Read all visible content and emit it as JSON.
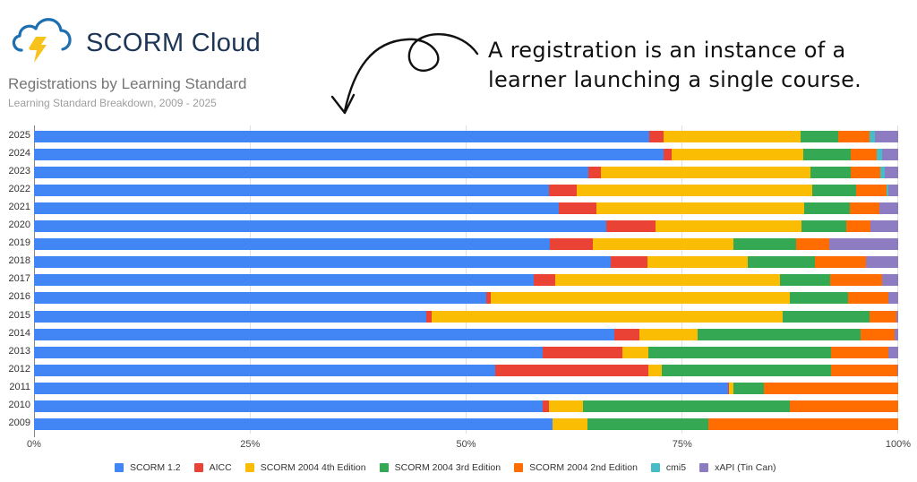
{
  "brand": {
    "name": "SCORM Cloud",
    "icon": "cloud-lightning-icon",
    "colors": {
      "cloud": "#1e6fb0",
      "bolt": "#f7c21b",
      "text": "#1d3557"
    }
  },
  "annotation": {
    "line1": "A registration is an instance of a",
    "line2": "learner launching a single course."
  },
  "chart_data": {
    "type": "bar",
    "orientation": "horizontal",
    "stacked": "percent",
    "title": "Registrations by Learning Standard",
    "subtitle": "Learning Standard Breakdown, 2009 - 2025",
    "xlabel": "",
    "ylabel": "",
    "xlim": [
      0,
      100
    ],
    "x_ticks": [
      "0%",
      "25%",
      "50%",
      "75%",
      "100%"
    ],
    "grid": true,
    "legend_position": "bottom",
    "categories": [
      "2025",
      "2024",
      "2023",
      "2022",
      "2021",
      "2020",
      "2019",
      "2018",
      "2017",
      "2016",
      "2015",
      "2014",
      "2013",
      "2012",
      "2011",
      "2010",
      "2009"
    ],
    "series": [
      {
        "name": "SCORM 1.2",
        "color": "#4285f4",
        "values": [
          71.2,
          72.9,
          64.1,
          59.6,
          60.7,
          66.2,
          59.7,
          66.7,
          57.8,
          52.3,
          45.4,
          67.2,
          58.9,
          53.4,
          80.3,
          58.9,
          60.0
        ]
      },
      {
        "name": "AICC",
        "color": "#ea4335",
        "values": [
          1.6,
          0.9,
          1.5,
          3.2,
          4.4,
          5.7,
          5.0,
          4.3,
          2.5,
          0.6,
          0.6,
          2.9,
          9.2,
          17.7,
          0.1,
          0.7,
          0.0
        ]
      },
      {
        "name": "SCORM 2004 4th Edition",
        "color": "#fbbc04",
        "values": [
          15.9,
          15.2,
          24.2,
          27.3,
          24.0,
          16.9,
          16.2,
          11.6,
          26.0,
          34.6,
          40.6,
          6.7,
          3.0,
          1.5,
          0.5,
          3.9,
          4.0
        ]
      },
      {
        "name": "SCORM 2004 3rd Edition",
        "color": "#34a853",
        "values": [
          4.4,
          5.5,
          4.7,
          5.0,
          5.3,
          5.2,
          7.3,
          7.8,
          5.8,
          6.7,
          10.1,
          18.8,
          21.1,
          19.6,
          3.6,
          24.0,
          14.0
        ]
      },
      {
        "name": "SCORM 2004 2nd Edition",
        "color": "#ff6d01",
        "values": [
          3.6,
          3.0,
          3.4,
          3.6,
          3.4,
          2.8,
          3.8,
          5.9,
          6.0,
          4.7,
          3.1,
          4.0,
          6.7,
          7.7,
          15.5,
          12.5,
          22.0
        ]
      },
      {
        "name": "cmi5",
        "color": "#46bdc6",
        "values": [
          0.6,
          0.6,
          0.5,
          0.2,
          0.0,
          0.0,
          0.0,
          0.0,
          0.0,
          0.0,
          0.0,
          0.0,
          0.0,
          0.0,
          0.0,
          0.0,
          0.0
        ]
      },
      {
        "name": "xAPI (Tin Can)",
        "color": "#8e7cc3",
        "values": [
          2.7,
          1.9,
          1.6,
          1.1,
          2.2,
          3.2,
          8.0,
          3.7,
          1.9,
          1.1,
          0.2,
          0.4,
          1.1,
          0.1,
          0.0,
          0.0,
          0.0
        ]
      }
    ]
  }
}
